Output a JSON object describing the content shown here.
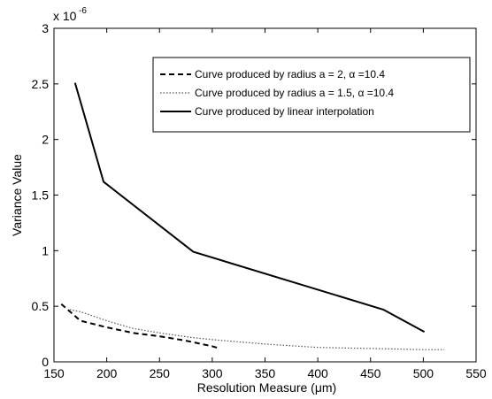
{
  "chart_data": {
    "type": "line",
    "title": "",
    "xlabel": "Resolution Measure (μm)",
    "ylabel": "Variance Value",
    "y_scale_multiplier": "x 10",
    "y_scale_exponent": "-6",
    "xlim": [
      150,
      550
    ],
    "ylim": [
      0,
      3
    ],
    "x_ticks": [
      150,
      200,
      250,
      300,
      350,
      400,
      450,
      500,
      550
    ],
    "y_ticks": [
      0,
      0.5,
      1,
      1.5,
      2,
      2.5,
      3
    ],
    "x_tick_labels": [
      "150",
      "200",
      "250",
      "300",
      "350",
      "400",
      "450",
      "500",
      "550"
    ],
    "y_tick_labels": [
      "0",
      "0.5",
      "1",
      "1.5",
      "2",
      "2.5",
      "3"
    ],
    "grid": false,
    "legend_position": "top-right",
    "series": [
      {
        "name": "Curve produced by radius a = 2, α =10.4",
        "style": "dashed",
        "color": "#000000",
        "x": [
          157,
          175,
          200,
          225,
          250,
          275,
          300,
          307
        ],
        "y": [
          0.52,
          0.37,
          0.31,
          0.26,
          0.23,
          0.19,
          0.14,
          0.12
        ]
      },
      {
        "name": "Curve produced by radius a = 1.5, α =10.4",
        "style": "dotted",
        "color": "#000000",
        "x": [
          165,
          175,
          200,
          225,
          250,
          280,
          300,
          350,
          400,
          450,
          500,
          520
        ],
        "y": [
          0.47,
          0.45,
          0.37,
          0.3,
          0.26,
          0.22,
          0.2,
          0.16,
          0.13,
          0.12,
          0.11,
          0.11
        ]
      },
      {
        "name": "Curve produced by linear interpolation",
        "style": "solid",
        "color": "#000000",
        "x": [
          170,
          197,
          282,
          462,
          501
        ],
        "y": [
          2.51,
          1.62,
          0.99,
          0.47,
          0.27
        ]
      }
    ]
  }
}
